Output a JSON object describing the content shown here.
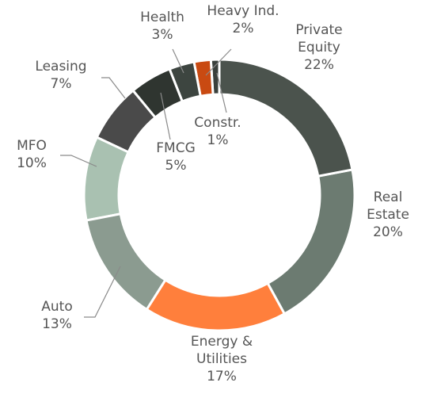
{
  "chart_data": {
    "type": "donut",
    "categories": [
      "Private Equity",
      "Real Estate",
      "Energy & Utilities",
      "Auto",
      "MFO",
      "Leasing",
      "FMCG",
      "Health",
      "Heavy Ind.",
      "Constr."
    ],
    "values": [
      22,
      20,
      17,
      13,
      10,
      7,
      5,
      3,
      2,
      1
    ],
    "value_labels": [
      "22%",
      "20%",
      "17%",
      "13%",
      "10%",
      "7%",
      "5%",
      "3%",
      "2%",
      "1%"
    ],
    "colors": [
      "#4b534d",
      "#6c7b71",
      "#ff7f3c",
      "#8b9b90",
      "#a9c1b1",
      "#4a4a4a",
      "#2f3530",
      "#3d4540",
      "#c94a12",
      "#3a403c"
    ]
  }
}
